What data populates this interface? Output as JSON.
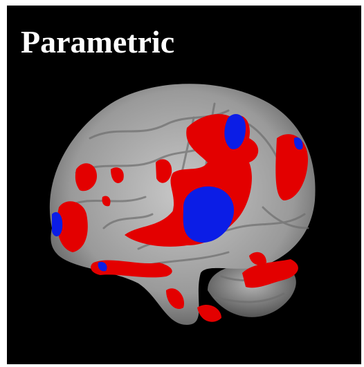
{
  "title": "Parametric"
}
